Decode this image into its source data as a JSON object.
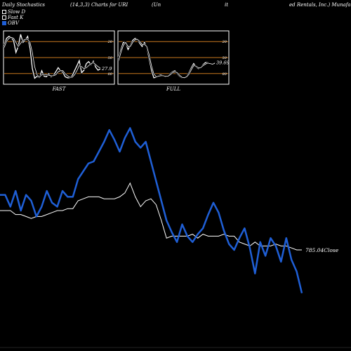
{
  "header": {
    "left": "Daily Stochastics",
    "params": "(14,3,3) Charts for URI",
    "paren": "(Un",
    "mid": "it",
    "right": "ed Rentals, Inc.) Munafa"
  },
  "legend": [
    {
      "label": "Slow D",
      "color": "#ffffff",
      "filled": false
    },
    {
      "label": "Fast K",
      "color": "#ffffff",
      "filled": false
    },
    {
      "label": "OBV",
      "color": "#1f5fd6",
      "filled": true
    }
  ],
  "colors": {
    "background": "#000000",
    "obv": "#1f5fd6",
    "close": "#ffffff",
    "guide": "#c8781e",
    "panel_border": "#ffffff"
  },
  "chart_data": [
    {
      "type": "line",
      "title": "FAST",
      "ylim": [
        0,
        100
      ],
      "levels": [
        20,
        50,
        80
      ],
      "tick_labels": [
        "80",
        "50",
        "20"
      ],
      "last_value_label": "27.9",
      "series": [
        {
          "name": "Fast K",
          "values": [
            74,
            88,
            92,
            90,
            83,
            60,
            72,
            96,
            80,
            85,
            92,
            68,
            28,
            9,
            13,
            10,
            24,
            13,
            12,
            18,
            12,
            15,
            22,
            30,
            24,
            21,
            12,
            10,
            10,
            14,
            24,
            34,
            44,
            20,
            25,
            38,
            42,
            36,
            43,
            31,
            25,
            27.9
          ]
        },
        {
          "name": "Slow D",
          "values": [
            70,
            82,
            88,
            90,
            88,
            80,
            72,
            78,
            84,
            86,
            86,
            80,
            60,
            32,
            16,
            11,
            16,
            16,
            16,
            15,
            14,
            14,
            16,
            22,
            24,
            24,
            18,
            14,
            11,
            11,
            16,
            24,
            34,
            32,
            28,
            30,
            34,
            38,
            40,
            36,
            32,
            29
          ]
        }
      ]
    },
    {
      "type": "line",
      "title": "FULL",
      "ylim": [
        0,
        100
      ],
      "levels": [
        20,
        50,
        80
      ],
      "tick_labels": [
        "80",
        "50",
        "20"
      ],
      "last_value_label": "39.69",
      "series": [
        {
          "name": "Fast K",
          "values": [
            48,
            66,
            80,
            80,
            66,
            74,
            84,
            88,
            86,
            78,
            72,
            80,
            70,
            48,
            25,
            10,
            11,
            14,
            16,
            14,
            12,
            13,
            18,
            22,
            24,
            18,
            13,
            10,
            10,
            13,
            20,
            30,
            38,
            32,
            28,
            30,
            36,
            40,
            40,
            38,
            37,
            39.69
          ]
        },
        {
          "name": "Slow D",
          "values": [
            44,
            60,
            74,
            80,
            72,
            72,
            80,
            85,
            86,
            82,
            76,
            76,
            72,
            56,
            34,
            18,
            12,
            13,
            14,
            14,
            13,
            13,
            16,
            20,
            22,
            20,
            15,
            11,
            10,
            12,
            17,
            26,
            34,
            33,
            30,
            30,
            34,
            37,
            39,
            38,
            37,
            38.5
          ]
        }
      ]
    },
    {
      "type": "line",
      "title": "",
      "ylim": [
        0,
        100
      ],
      "last_value_label": "785.04",
      "last_value_suffix": "Close",
      "series": [
        {
          "name": "OBV",
          "values": [
            58,
            58,
            52,
            60,
            50,
            58,
            55,
            47,
            52,
            60,
            54,
            52,
            60,
            57,
            57,
            66,
            70,
            74,
            75,
            80,
            85,
            91,
            86,
            80,
            87,
            92,
            85,
            82,
            85,
            75,
            65,
            55,
            45,
            39,
            34,
            43,
            37,
            34,
            38,
            41,
            48,
            54,
            49,
            40,
            33,
            30,
            36,
            41,
            31,
            18,
            34,
            27,
            36,
            32,
            24,
            36,
            25,
            19,
            8
          ]
        },
        {
          "name": "Close",
          "values": [
            50,
            50,
            50,
            48,
            48,
            47,
            46,
            47,
            47,
            48,
            49,
            50,
            50,
            51,
            51,
            55,
            56,
            57,
            57,
            57,
            56,
            56,
            56,
            57,
            59,
            64,
            57,
            52,
            55,
            56,
            53,
            45,
            36,
            37,
            37,
            37,
            37,
            38,
            36,
            38,
            37,
            37,
            37,
            38,
            37,
            37,
            34,
            33,
            32,
            34,
            32,
            32,
            32,
            33,
            32,
            32,
            31,
            30,
            30
          ]
        }
      ]
    }
  ]
}
